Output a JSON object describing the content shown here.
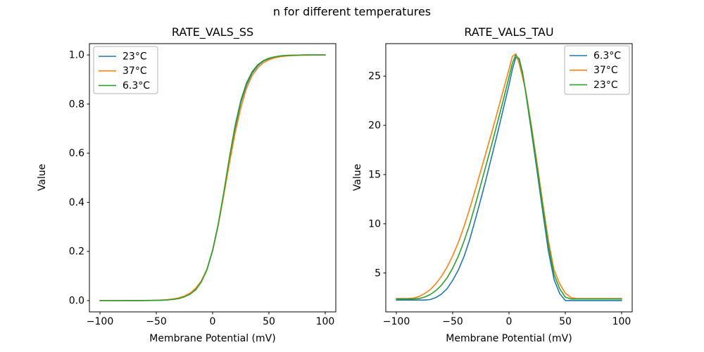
{
  "figure": {
    "suptitle": "n for different temperatures",
    "background": "#ffffff",
    "text_color": "#000000"
  },
  "chart_data": [
    {
      "type": "line",
      "title": "RATE_VALS_SS",
      "xlabel": "Membrane Potential (mV)",
      "ylabel": "Value",
      "xlim": [
        -109.4,
        109.4
      ],
      "ylim": [
        -0.046,
        1.046
      ],
      "grid": false,
      "legend_position": "upper-left",
      "xticks": [
        -100,
        -50,
        0,
        50,
        100
      ],
      "xtick_labels": [
        "−100",
        "−50",
        "0",
        "50",
        "100"
      ],
      "yticks": [
        0.0,
        0.2,
        0.4,
        0.6,
        0.8,
        1.0
      ],
      "ytick_labels": [
        "0.0",
        "0.2",
        "0.4",
        "0.6",
        "0.8",
        "1.0"
      ],
      "x": [
        -100,
        -95,
        -90,
        -85,
        -80,
        -75,
        -70,
        -65,
        -60,
        -55,
        -50,
        -45,
        -40,
        -35,
        -30,
        -25,
        -20,
        -15,
        -10,
        -5,
        0,
        5,
        10,
        15,
        20,
        25,
        30,
        35,
        40,
        45,
        50,
        55,
        60,
        65,
        70,
        75,
        80,
        85,
        90,
        95,
        100
      ],
      "series": [
        {
          "name": "23°C",
          "color": "#1f77b4",
          "values": [
            0.0,
            0.0,
            0.0,
            0.0,
            0.0,
            0.0001,
            0.0001,
            0.0002,
            0.0003,
            0.0006,
            0.001,
            0.0017,
            0.003,
            0.0052,
            0.009,
            0.016,
            0.027,
            0.046,
            0.078,
            0.128,
            0.205,
            0.31,
            0.439,
            0.577,
            0.704,
            0.806,
            0.878,
            0.926,
            0.956,
            0.975,
            0.985,
            0.992,
            0.995,
            0.997,
            0.998,
            0.999,
            0.9995,
            1.0,
            1.0,
            1.0,
            1.0
          ]
        },
        {
          "name": "37°C",
          "color": "#ff7f0e",
          "values": [
            0.0,
            0.0,
            0.0,
            0.0,
            0.0001,
            0.0001,
            0.0002,
            0.0003,
            0.0005,
            0.0008,
            0.0014,
            0.0023,
            0.004,
            0.0066,
            0.0111,
            0.0185,
            0.0306,
            0.0501,
            0.0806,
            0.128,
            0.202,
            0.306,
            0.431,
            0.561,
            0.683,
            0.784,
            0.864,
            0.915,
            0.947,
            0.968,
            0.98,
            0.988,
            0.9926,
            0.9955,
            0.997,
            0.998,
            0.999,
            0.999,
            1.0,
            1.0,
            1.0
          ]
        },
        {
          "name": "6.3°C",
          "color": "#2ca02c",
          "values": [
            0.0,
            0.0,
            0.0,
            0.0,
            0.0,
            0.0001,
            0.0001,
            0.0002,
            0.0003,
            0.0005,
            0.0009,
            0.0015,
            0.0027,
            0.0047,
            0.0083,
            0.015,
            0.026,
            0.044,
            0.076,
            0.125,
            0.204,
            0.311,
            0.443,
            0.585,
            0.713,
            0.814,
            0.885,
            0.931,
            0.96,
            0.977,
            0.987,
            0.992,
            0.996,
            0.998,
            0.999,
            0.999,
            1.0,
            1.0,
            1.0,
            1.0,
            1.0
          ]
        }
      ]
    },
    {
      "type": "line",
      "title": "RATE_VALS_TAU",
      "xlabel": "Membrane Potential (mV)",
      "ylabel": "Value",
      "xlim": [
        -109.4,
        109.4
      ],
      "ylim": [
        1.05,
        28.3
      ],
      "grid": false,
      "legend_position": "upper-right",
      "xticks": [
        -100,
        -50,
        0,
        50,
        100
      ],
      "xtick_labels": [
        "−100",
        "−50",
        "0",
        "50",
        "100"
      ],
      "yticks": [
        5,
        10,
        15,
        20,
        25
      ],
      "ytick_labels": [
        "5",
        "10",
        "15",
        "20",
        "25"
      ],
      "x": [
        -100,
        -95,
        -90,
        -85,
        -80,
        -75,
        -70,
        -65,
        -60,
        -55,
        -50,
        -45,
        -40,
        -35,
        -30,
        -25,
        -20,
        -15,
        -10,
        -5,
        0,
        3,
        6,
        9,
        12,
        15,
        20,
        25,
        30,
        35,
        40,
        45,
        50,
        55,
        60,
        65,
        70,
        75,
        80,
        85,
        90,
        95,
        100
      ],
      "series": [
        {
          "name": "6.3°C",
          "color": "#1f77b4",
          "values": [
            2.25,
            2.25,
            2.25,
            2.25,
            2.25,
            2.25,
            2.3,
            2.5,
            2.85,
            3.4,
            4.25,
            5.3,
            6.65,
            8.35,
            10.4,
            12.5,
            14.7,
            17.0,
            19.3,
            21.7,
            24.1,
            25.7,
            26.9,
            26.8,
            25.4,
            23.2,
            19.3,
            15.3,
            11.2,
            7.2,
            4.35,
            2.9,
            2.2,
            2.2,
            2.2,
            2.2,
            2.2,
            2.2,
            2.2,
            2.2,
            2.2,
            2.2,
            2.2
          ]
        },
        {
          "name": "37°C",
          "color": "#ff7f0e",
          "values": [
            2.4,
            2.4,
            2.4,
            2.45,
            2.6,
            2.9,
            3.3,
            3.9,
            4.65,
            5.6,
            6.75,
            8.1,
            9.7,
            11.5,
            13.4,
            15.4,
            17.4,
            19.4,
            21.5,
            23.6,
            25.7,
            27.0,
            27.25,
            26.3,
            24.9,
            23.4,
            19.9,
            16.1,
            12.1,
            8.3,
            5.3,
            3.9,
            2.95,
            2.5,
            2.4,
            2.4,
            2.4,
            2.4,
            2.4,
            2.4,
            2.4,
            2.4,
            2.4
          ]
        },
        {
          "name": "23°C",
          "color": "#2ca02c",
          "values": [
            2.36,
            2.36,
            2.36,
            2.36,
            2.4,
            2.55,
            2.8,
            3.2,
            3.75,
            4.5,
            5.5,
            6.7,
            8.2,
            9.9,
            11.9,
            14.0,
            16.1,
            18.2,
            20.4,
            22.6,
            24.9,
            26.3,
            27.15,
            26.7,
            25.3,
            23.3,
            19.6,
            15.7,
            11.7,
            7.8,
            4.85,
            3.4,
            2.55,
            2.36,
            2.36,
            2.36,
            2.36,
            2.36,
            2.36,
            2.36,
            2.36,
            2.36,
            2.36
          ]
        }
      ]
    }
  ]
}
